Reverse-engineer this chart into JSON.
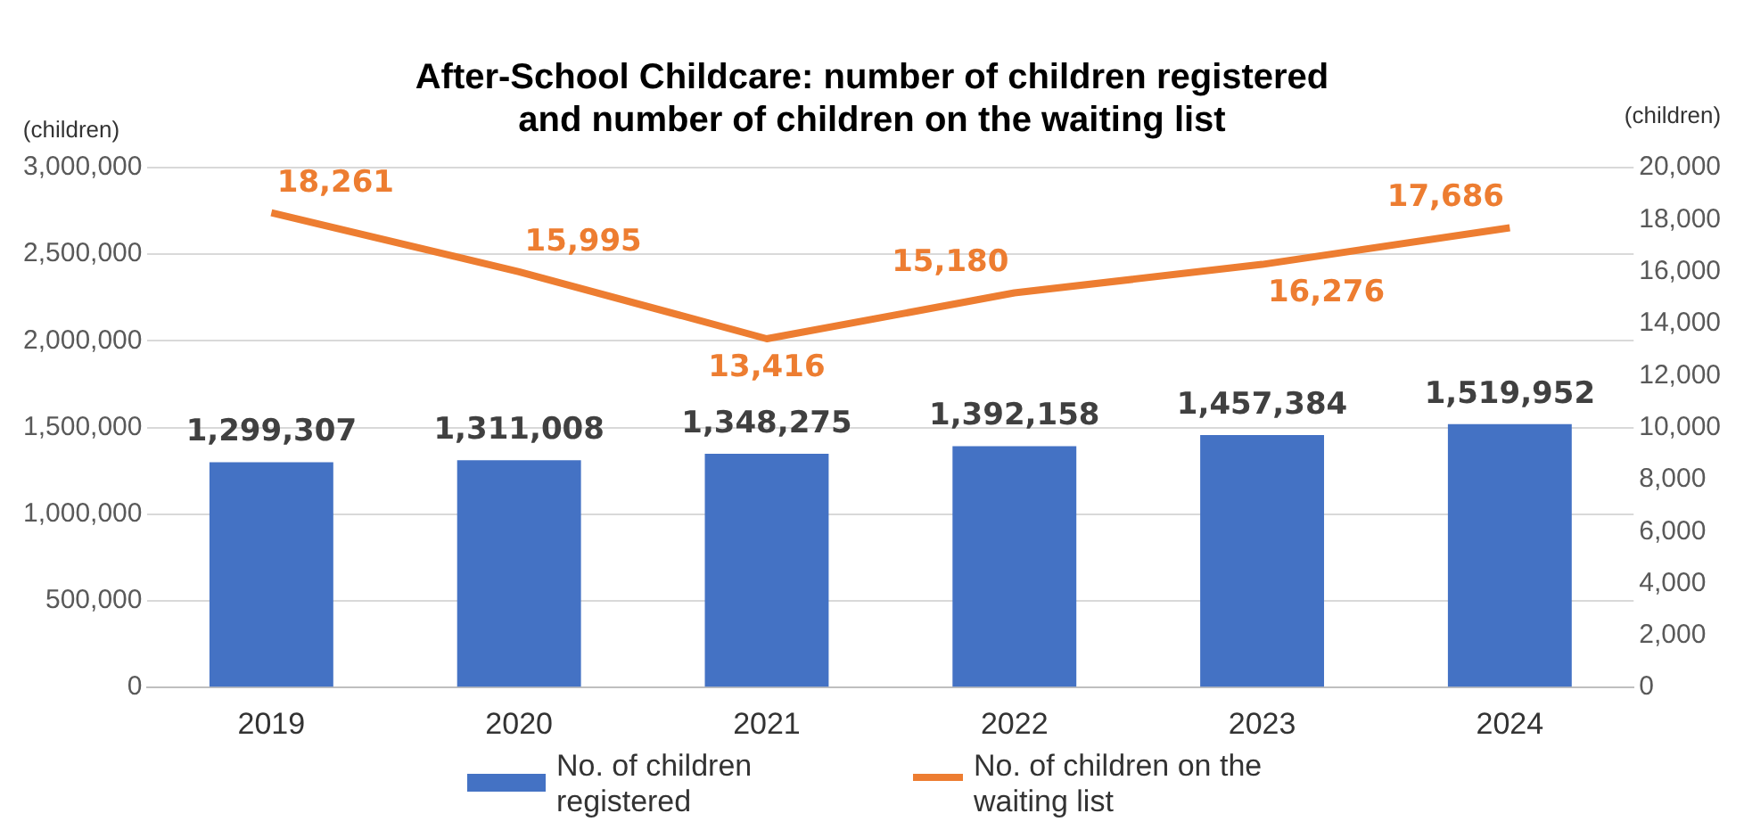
{
  "chart_data": {
    "type": "bar",
    "title": "After-School Childcare: number of children registered\nand number of children on the waiting list",
    "ylabel": "(children)",
    "y2label": "(children)",
    "categories": [
      "2019",
      "2020",
      "2021",
      "2022",
      "2023",
      "2024"
    ],
    "series": [
      {
        "name": "No. of children registered",
        "color": "#4472c4",
        "values": [
          1299307,
          1311008,
          1348275,
          1392158,
          1457384,
          1519952
        ],
        "value_labels": [
          "1,299,307",
          "1,311,008",
          "1,348,275",
          "1,392,158",
          "1,457,384",
          "1,519,952"
        ]
      },
      {
        "name": "No. of children on the waiting list",
        "color": "#ed7d31",
        "type": "line",
        "axis": "y2",
        "marker": "none",
        "values": [
          18261,
          15995,
          13416,
          15180,
          16276,
          17686
        ],
        "value_labels": [
          "18,261",
          "15,995",
          "13,416",
          "15,180",
          "16,276",
          "17,686"
        ]
      }
    ],
    "ylim": [
      0,
      3000000
    ],
    "yticks": [
      0,
      {
        "value": 500000,
        "label": "500,000"
      },
      {
        "value": 1000000,
        "label": "1,000,000"
      },
      {
        "value": 1500000,
        "label": "1,500,000"
      },
      {
        "value": 2000000,
        "label": "2,000,000"
      },
      {
        "value": 2500000,
        "label": "2,500,000"
      },
      {
        "value": 3000000,
        "label": "3,000,000"
      }
    ],
    "y2lim": [
      0,
      20000
    ],
    "y2ticks": [
      0,
      {
        "value": 2000,
        "label": "2,000"
      },
      {
        "value": 4000,
        "label": "4,000"
      },
      {
        "value": 6000,
        "label": "6,000"
      },
      {
        "value": 8000,
        "label": "8,000"
      },
      {
        "value": 10000,
        "label": "10,000"
      },
      {
        "value": 12000,
        "label": "12,000"
      },
      {
        "value": 14000,
        "label": "14,000"
      },
      {
        "value": 16000,
        "label": "16,000"
      },
      {
        "value": 18000,
        "label": "18,000"
      },
      {
        "value": 20000,
        "label": "20,000"
      }
    ],
    "grid": "y",
    "legend": "bottom"
  }
}
